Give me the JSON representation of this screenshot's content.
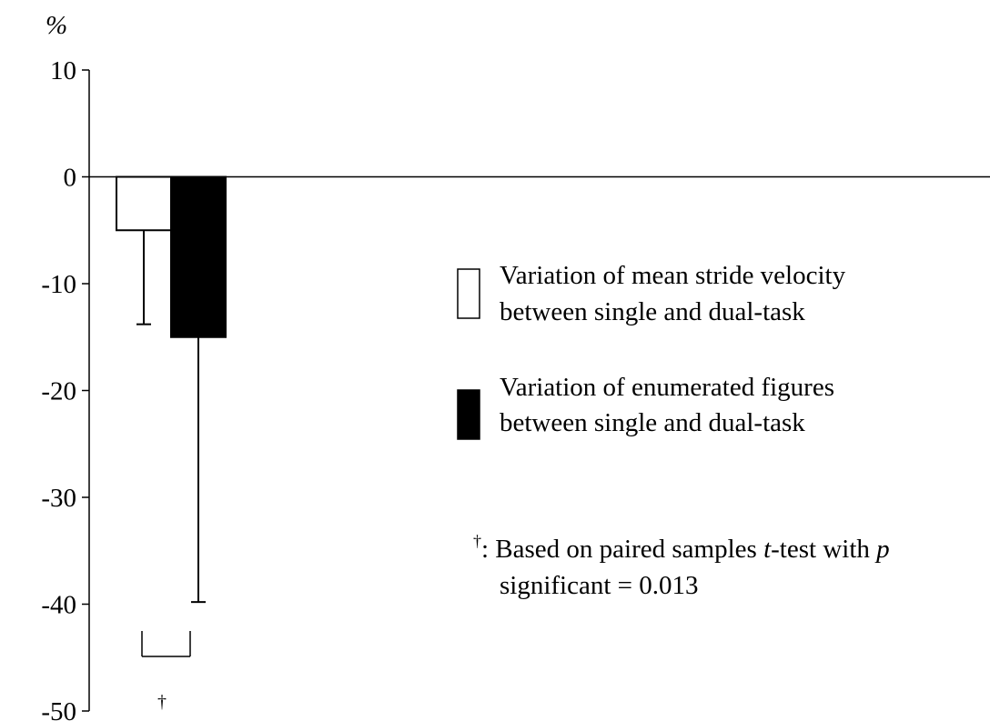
{
  "chart_data": {
    "type": "bar",
    "ylabel": "%",
    "ylim": [
      -50,
      10
    ],
    "yticks": [
      10,
      0,
      -10,
      -20,
      -30,
      -40,
      -50
    ],
    "grid": false,
    "legend_position": "right",
    "series": [
      {
        "name": "Variation of mean stride velocity between single and dual-task",
        "legend_lines": [
          "Variation of mean stride velocity",
          "between single and dual-task"
        ],
        "value": -5,
        "error": 8.8,
        "fill": "#ffffff"
      },
      {
        "name": "Variation of enumerated figures between single and dual-task",
        "legend_lines": [
          "Variation of enumerated figures",
          "between single and dual-task"
        ],
        "value": -15,
        "error": 24.8,
        "fill": "#000000"
      }
    ],
    "significance": {
      "marker": "†"
    },
    "annotation": {
      "dagger": "†",
      "line1_pre": ": Based on paired samples ",
      "line1_italic": "t",
      "line1_mid": "-test with ",
      "line1_italic2": "p",
      "line2": "significant = 0.013"
    }
  },
  "colors": {
    "axis": "#000000",
    "bar_outline": "#000000"
  }
}
